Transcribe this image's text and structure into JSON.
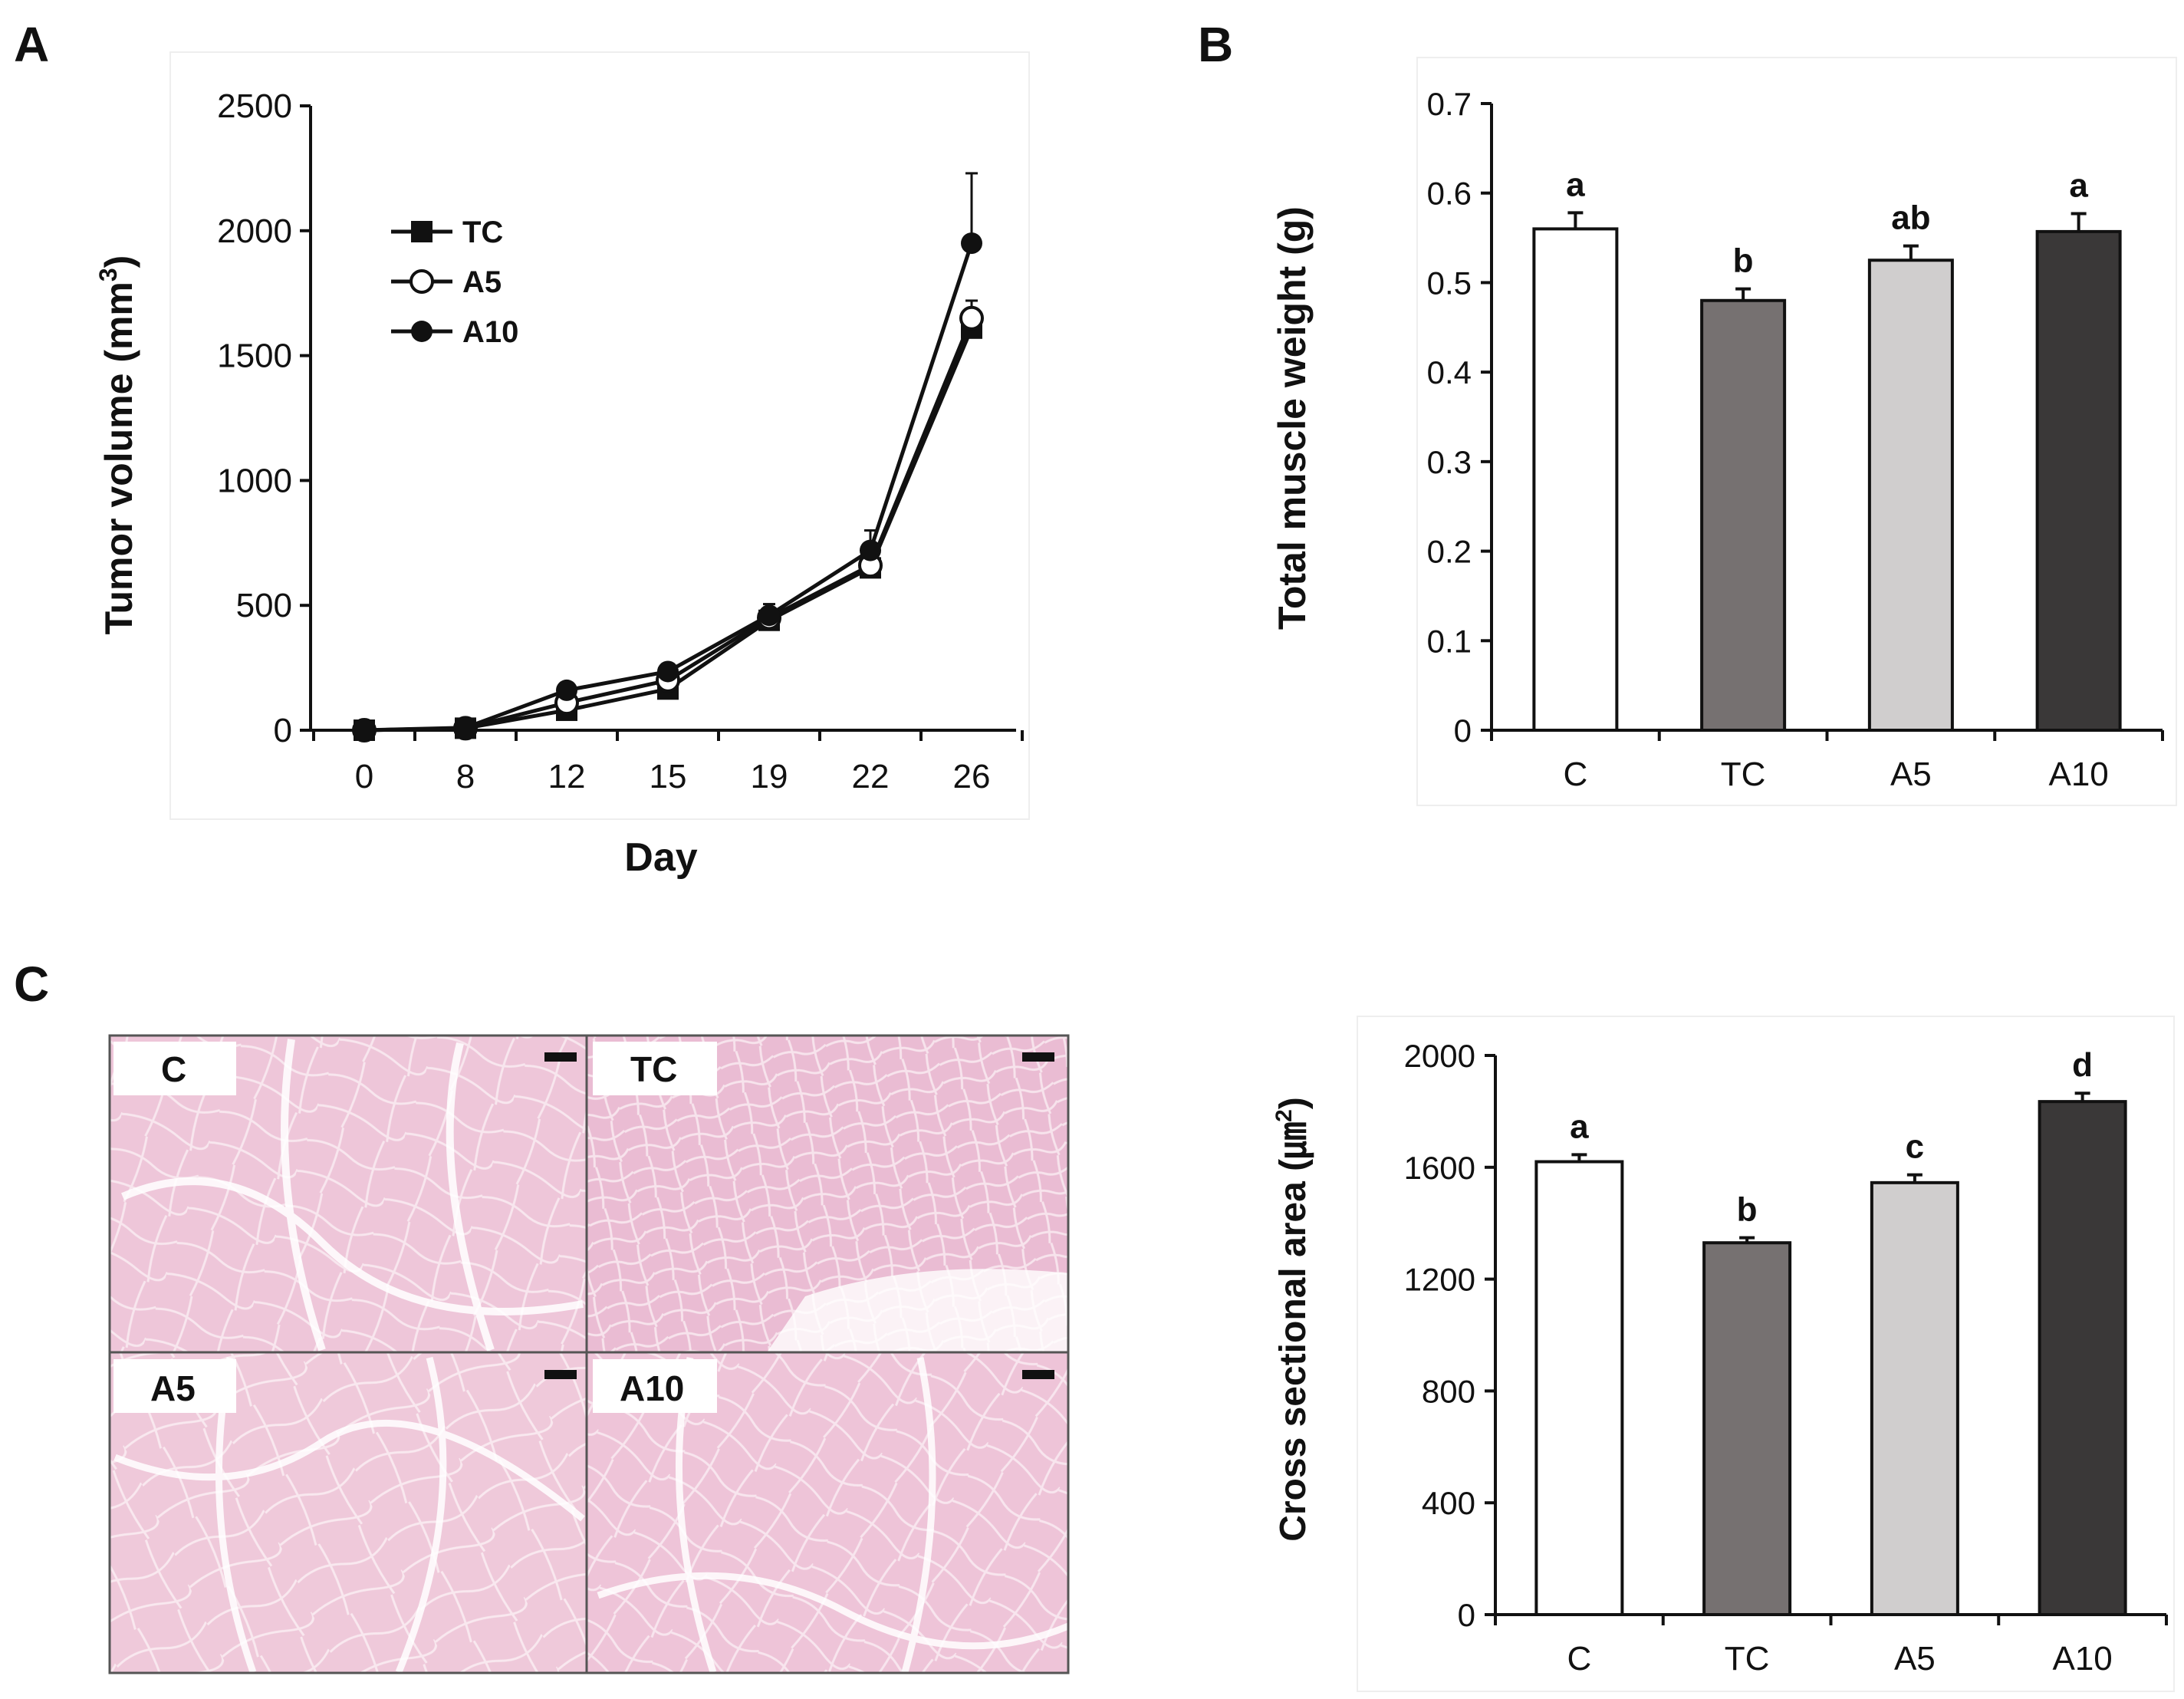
{
  "panel_labels": {
    "a": "A",
    "b": "B",
    "c": "C"
  },
  "colors": {
    "C": "#ffffff",
    "TC": "#767171",
    "A5": "#d0cece",
    "A10": "#3a3838",
    "tissue": "#eec6d9",
    "tissue_line": "#ffffff",
    "label_box": "#ffffff"
  },
  "chart_data": [
    {
      "id": "tumor-volume",
      "type": "line",
      "xlabel": "Day",
      "ylabel": "Tumor volume (mm3)",
      "ylabel_main": "Tumor volume (mm",
      "ylabel_sup": "3",
      "ylabel_tail": ")",
      "ylim": [
        0,
        2500
      ],
      "yticks": [
        0,
        500,
        1000,
        1500,
        2000,
        2500
      ],
      "categories": [
        "0",
        "8",
        "12",
        "15",
        "19",
        "22",
        "26"
      ],
      "legend_position": "top-left",
      "series": [
        {
          "name": "TC",
          "marker": "square",
          "values": [
            0,
            8,
            80,
            165,
            440,
            650,
            1610
          ],
          "errors": [
            0,
            4,
            15,
            20,
            30,
            35,
            70
          ]
        },
        {
          "name": "A5",
          "marker": "open-circle",
          "values": [
            0,
            8,
            110,
            200,
            450,
            660,
            1650
          ],
          "errors": [
            0,
            4,
            15,
            20,
            30,
            35,
            70
          ]
        },
        {
          "name": "A10",
          "marker": "filled-circle",
          "values": [
            0,
            10,
            160,
            235,
            460,
            720,
            1950
          ],
          "errors": [
            0,
            4,
            15,
            20,
            45,
            80,
            280
          ]
        }
      ]
    },
    {
      "id": "muscle-weight",
      "type": "bar",
      "ylabel": "Total muscle weight (g)",
      "ylim": [
        0,
        0.7
      ],
      "yticks": [
        "0",
        "0.1",
        "0.2",
        "0.3",
        "0.4",
        "0.5",
        "0.6",
        "0.7"
      ],
      "categories": [
        "C",
        "TC",
        "A5",
        "A10"
      ],
      "values": [
        0.56,
        0.48,
        0.525,
        0.557
      ],
      "errors": [
        0.018,
        0.013,
        0.016,
        0.02
      ],
      "significance": [
        "a",
        "b",
        "ab",
        "a"
      ]
    },
    {
      "id": "cross-sectional-area",
      "type": "bar",
      "ylabel": "Cross sectional area (㎛2)",
      "ylabel_main": "Cross sectional area (㎛",
      "ylabel_sup": "2",
      "ylabel_tail": ")",
      "ylim": [
        0,
        2000
      ],
      "yticks": [
        "0",
        "400",
        "800",
        "1200",
        "1600",
        "2000"
      ],
      "categories": [
        "C",
        "TC",
        "A5",
        "A10"
      ],
      "values": [
        1620,
        1330,
        1545,
        1835
      ],
      "errors": [
        25,
        18,
        28,
        30
      ],
      "significance": [
        "a",
        "b",
        "c",
        "d"
      ]
    }
  ],
  "histology": {
    "panels": [
      {
        "label": "C"
      },
      {
        "label": "TC"
      },
      {
        "label": "A5"
      },
      {
        "label": "A10"
      }
    ]
  }
}
